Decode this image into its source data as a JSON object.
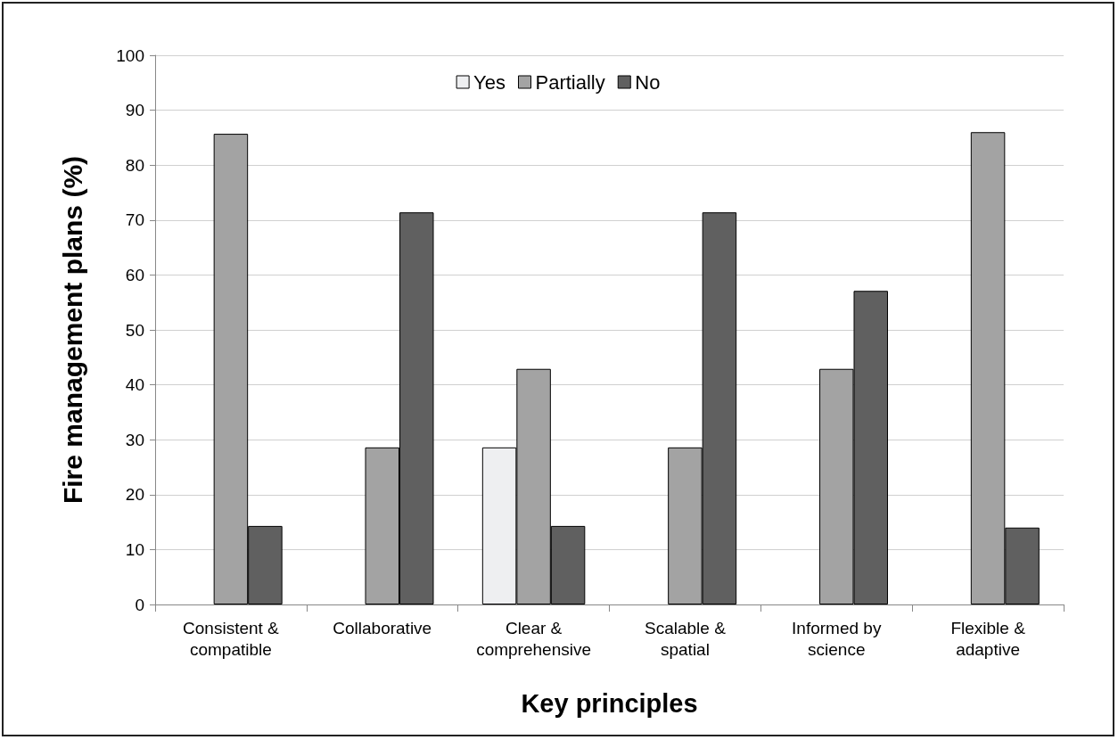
{
  "chart_data": {
    "type": "bar",
    "xlabel": "Key principles",
    "ylabel": "Fire management plans (%)",
    "categories": [
      "Consistent &\ncompatible",
      "Collaborative",
      "Clear &\ncomprehensive",
      "Scalable &\nspatial",
      "Informed by\nscience",
      "Flexible &\nadaptive"
    ],
    "series": [
      {
        "name": "Yes",
        "color": "#eeeff1",
        "values": [
          0,
          0,
          28.6,
          0,
          0,
          0
        ]
      },
      {
        "name": "Partially",
        "color": "#a3a3a3",
        "values": [
          85.7,
          28.6,
          42.9,
          28.6,
          42.9,
          86
        ]
      },
      {
        "name": "No",
        "color": "#606060",
        "values": [
          14.3,
          71.4,
          14.3,
          71.4,
          57.1,
          14
        ]
      }
    ],
    "ylim": [
      0,
      100
    ],
    "yticks": [
      0,
      10,
      20,
      30,
      40,
      50,
      60,
      70,
      80,
      90,
      100
    ],
    "grid": "y",
    "legend": "top"
  }
}
